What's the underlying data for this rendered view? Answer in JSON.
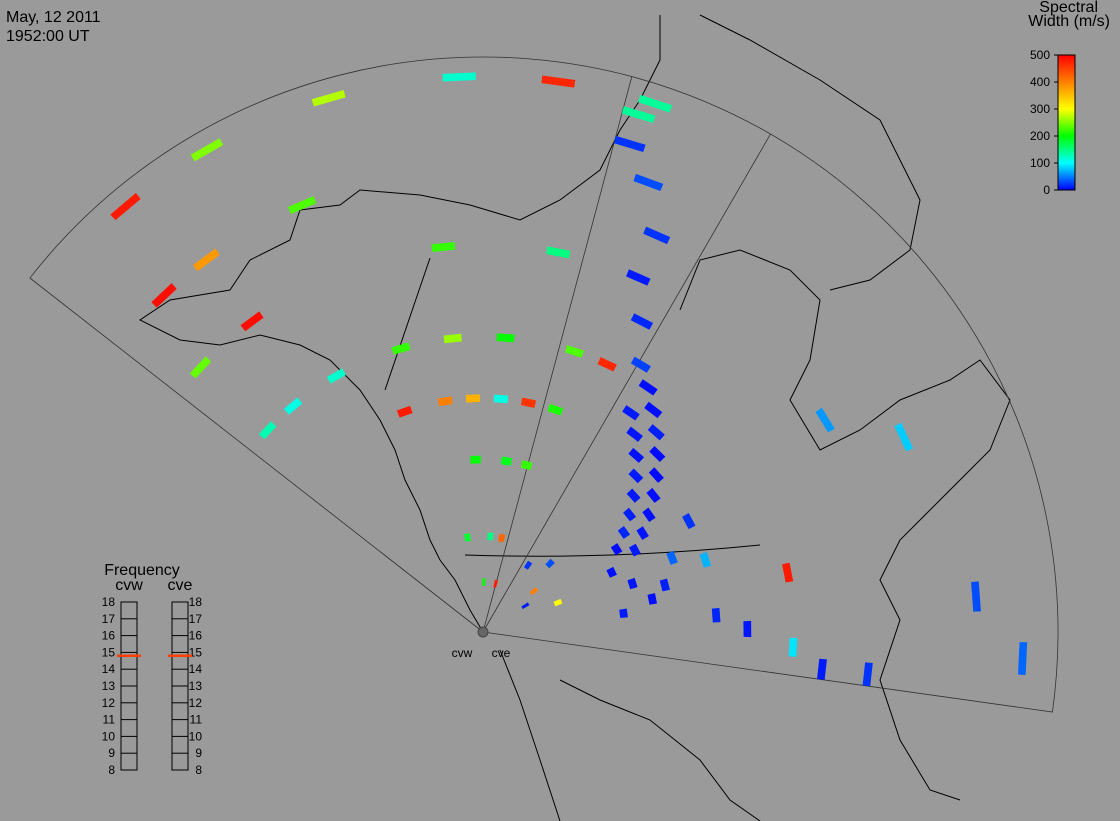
{
  "header": {
    "date": "May, 12 2011",
    "time": "1952:00 UT"
  },
  "colorbar": {
    "title": [
      "Spectral",
      "Width (m/s)"
    ],
    "lim": [
      0,
      500
    ],
    "ticks": [
      0,
      100,
      200,
      300,
      400,
      500
    ]
  },
  "frequency": {
    "title": "Frequency",
    "lim": [
      8,
      18
    ],
    "ticks": [
      8,
      9,
      10,
      11,
      12,
      13,
      14,
      15,
      16,
      17,
      18
    ],
    "radars": [
      {
        "name": "cvw",
        "value": 14.8
      },
      {
        "name": "cve",
        "value": 14.8
      }
    ]
  },
  "radars": [
    {
      "name": "cvw",
      "echoes": [
        [
          3,
          72,
          480
        ],
        [
          6,
          72,
          250
        ],
        [
          10,
          72,
          270
        ],
        [
          14,
          72,
          120
        ],
        [
          17,
          72,
          470
        ],
        [
          20,
          72,
          140
        ],
        [
          2,
          60,
          490
        ],
        [
          4,
          60,
          380
        ],
        [
          8,
          60,
          230
        ],
        [
          1,
          50,
          240
        ],
        [
          4,
          50,
          490
        ],
        [
          13,
          50,
          220
        ],
        [
          18,
          50,
          150
        ],
        [
          1,
          38,
          130
        ],
        [
          3,
          38,
          110
        ],
        [
          6,
          38,
          120
        ],
        [
          10,
          38,
          220
        ],
        [
          13,
          38,
          260
        ],
        [
          16,
          38,
          200
        ],
        [
          20,
          38,
          230
        ],
        [
          22,
          38,
          470
        ],
        [
          9,
          30,
          480
        ],
        [
          12,
          30,
          400
        ],
        [
          14,
          30,
          360
        ],
        [
          16,
          30,
          110
        ],
        [
          18,
          30,
          460
        ],
        [
          20,
          30,
          210
        ],
        [
          14,
          22,
          200
        ],
        [
          17,
          22,
          190
        ],
        [
          19,
          22,
          220
        ],
        [
          12,
          12,
          180
        ],
        [
          16,
          12,
          150
        ],
        [
          18,
          12,
          420
        ],
        [
          15,
          6,
          200
        ],
        [
          19,
          6,
          480
        ]
      ]
    },
    {
      "name": "cve",
      "echoes": [
        [
          0,
          70,
          140
        ],
        [
          0,
          66,
          20
        ],
        [
          1,
          62,
          30
        ],
        [
          2,
          56,
          20
        ],
        [
          2,
          50,
          10
        ],
        [
          3,
          45,
          15
        ],
        [
          4,
          40,
          25
        ],
        [
          5,
          38,
          5
        ],
        [
          5,
          34,
          10
        ],
        [
          6,
          36,
          5
        ],
        [
          6,
          32,
          8
        ],
        [
          7,
          34,
          12
        ],
        [
          7,
          30,
          6
        ],
        [
          8,
          32,
          4
        ],
        [
          8,
          28,
          10
        ],
        [
          9,
          30,
          3
        ],
        [
          9,
          26,
          9
        ],
        [
          10,
          28,
          5
        ],
        [
          10,
          24,
          12
        ],
        [
          11,
          26,
          6
        ],
        [
          11,
          22,
          15
        ],
        [
          12,
          24,
          8
        ],
        [
          12,
          20,
          4
        ],
        [
          13,
          30,
          20
        ],
        [
          13,
          22,
          10
        ],
        [
          14,
          18,
          6
        ],
        [
          15,
          26,
          40
        ],
        [
          16,
          30,
          70
        ],
        [
          16,
          20,
          8
        ],
        [
          17,
          24,
          12
        ],
        [
          18,
          40,
          480
        ],
        [
          18,
          22,
          5
        ],
        [
          19,
          18,
          10
        ],
        [
          20,
          30,
          15
        ],
        [
          21,
          34,
          8
        ],
        [
          22,
          40,
          90
        ],
        [
          23,
          44,
          10
        ],
        [
          23,
          50,
          20
        ],
        [
          12,
          52,
          60
        ],
        [
          14,
          60,
          80
        ],
        [
          20,
          64,
          30
        ],
        [
          22,
          70,
          40
        ],
        [
          5,
          10,
          20
        ],
        [
          8,
          12,
          30
        ],
        [
          10,
          8,
          400
        ],
        [
          12,
          6,
          10
        ],
        [
          15,
          10,
          300
        ]
      ]
    }
  ]
}
